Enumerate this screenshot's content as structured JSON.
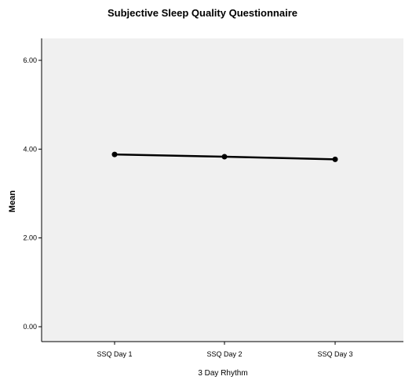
{
  "chart_data": {
    "type": "line",
    "title": "Subjective Sleep Quality Questionnaire",
    "xlabel": "3 Day Rhythm",
    "ylabel": "Mean",
    "categories": [
      "SSQ Day 1",
      "SSQ Day 2",
      "SSQ Day 3"
    ],
    "series": [
      {
        "values": [
          3.88,
          3.83,
          3.77
        ]
      }
    ],
    "ylim": [
      0,
      6
    ],
    "yticks": [
      "0.00",
      "2.00",
      "4.00",
      "6.00"
    ],
    "grid": false,
    "legend": "none",
    "colors": {
      "plot_bg": "#f0f0f0",
      "line": "#000000",
      "axis": "#000000"
    }
  }
}
